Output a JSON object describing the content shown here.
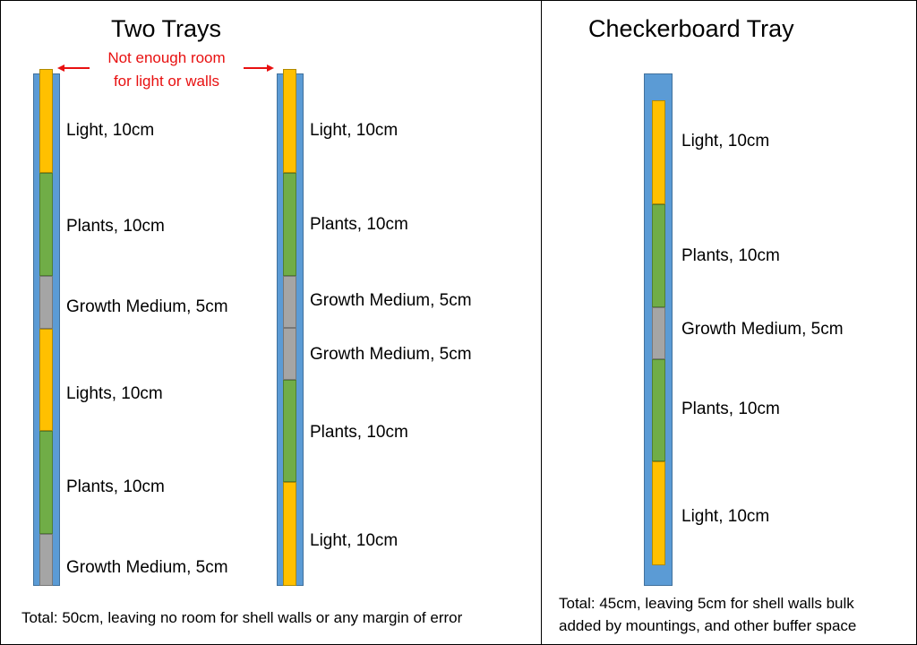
{
  "left_panel": {
    "title": "Two Trays",
    "warning_line1": "Not enough room",
    "warning_line2": "for light or walls",
    "tray1": {
      "labels": [
        "Light, 10cm",
        "Plants, 10cm",
        "Growth Medium, 5cm",
        "Lights, 10cm",
        "Plants, 10cm",
        "Growth Medium, 5cm"
      ]
    },
    "tray2": {
      "labels": [
        "Light, 10cm",
        "Plants, 10cm",
        "Growth Medium, 5cm",
        "Growth Medium, 5cm",
        "Plants, 10cm",
        "Light, 10cm"
      ]
    },
    "total": "Total: 50cm, leaving no room for shell walls or any margin of error"
  },
  "right_panel": {
    "title": "Checkerboard Tray",
    "tray": {
      "labels": [
        "Light, 10cm",
        "Plants, 10cm",
        "Growth Medium, 5cm",
        "Plants, 10cm",
        "Light, 10cm"
      ]
    },
    "total_line1": "Total: 45cm, leaving 5cm for shell walls bulk",
    "total_line2": "added by mountings, and other buffer space"
  },
  "colors": {
    "light": "#ffc000",
    "plants": "#70ad47",
    "medium": "#a5a5a5",
    "tube": "#5b9bd5",
    "warning": "#e81010"
  }
}
